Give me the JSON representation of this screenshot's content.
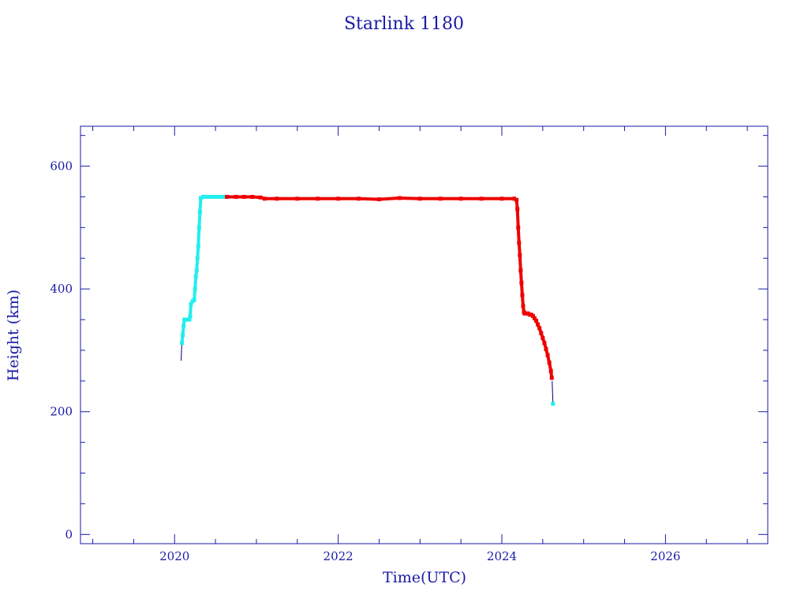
{
  "chart_data": {
    "type": "scatter",
    "title": "Starlink 1180",
    "xlabel": "Time(UTC)",
    "ylabel": "Height (km)",
    "xlim": [
      2018.85,
      2027.25
    ],
    "ylim": [
      -15,
      665
    ],
    "xticks": [
      2020,
      2022,
      2024,
      2026
    ],
    "yticks": [
      0,
      200,
      400,
      600
    ],
    "xminor_step": 0.5,
    "yminor_step": 50,
    "grid": false,
    "series": [
      {
        "color": "#000080",
        "style": "line",
        "points": [
          [
            2020.08,
            283
          ],
          [
            2020.085,
            300
          ],
          [
            2020.09,
            312
          ],
          [
            2024.615,
            250
          ],
          [
            2024.62,
            230
          ],
          [
            2024.625,
            213
          ]
        ]
      },
      {
        "color": "#22eeee",
        "style": "markers",
        "points": [
          [
            2020.09,
            312
          ],
          [
            2020.1,
            325
          ],
          [
            2020.11,
            340
          ],
          [
            2020.12,
            350
          ],
          [
            2020.14,
            350
          ],
          [
            2020.16,
            350
          ],
          [
            2020.18,
            350
          ],
          [
            2020.19,
            355
          ],
          [
            2020.2,
            375
          ],
          [
            2020.22,
            380
          ],
          [
            2020.24,
            382
          ],
          [
            2020.25,
            400
          ],
          [
            2020.26,
            420
          ],
          [
            2020.27,
            430
          ],
          [
            2020.28,
            450
          ],
          [
            2020.29,
            470
          ],
          [
            2020.3,
            500
          ],
          [
            2020.31,
            525
          ],
          [
            2020.32,
            548
          ],
          [
            2020.35,
            550
          ],
          [
            2020.4,
            550
          ],
          [
            2020.45,
            550
          ],
          [
            2020.5,
            550
          ],
          [
            2020.55,
            550
          ],
          [
            2020.6,
            550
          ],
          [
            2020.64,
            550
          ],
          [
            2024.625,
            213
          ]
        ]
      },
      {
        "color": "#ee0000",
        "style": "markers",
        "points": [
          [
            2020.64,
            550
          ],
          [
            2020.75,
            550
          ],
          [
            2020.85,
            550
          ],
          [
            2020.95,
            550
          ],
          [
            2021.05,
            549
          ],
          [
            2021.1,
            547
          ],
          [
            2021.25,
            547
          ],
          [
            2021.5,
            547
          ],
          [
            2021.75,
            547
          ],
          [
            2022.0,
            547
          ],
          [
            2022.25,
            547
          ],
          [
            2022.5,
            546
          ],
          [
            2022.75,
            548
          ],
          [
            2023.0,
            547
          ],
          [
            2023.25,
            547
          ],
          [
            2023.5,
            547
          ],
          [
            2023.75,
            547
          ],
          [
            2024.0,
            547
          ],
          [
            2024.15,
            547
          ],
          [
            2024.18,
            545
          ],
          [
            2024.19,
            530
          ],
          [
            2024.2,
            500
          ],
          [
            2024.21,
            475
          ],
          [
            2024.22,
            455
          ],
          [
            2024.23,
            430
          ],
          [
            2024.24,
            410
          ],
          [
            2024.25,
            390
          ],
          [
            2024.26,
            372
          ],
          [
            2024.27,
            362
          ],
          [
            2024.28,
            360
          ],
          [
            2024.3,
            360
          ],
          [
            2024.32,
            360
          ],
          [
            2024.34,
            358
          ],
          [
            2024.36,
            358
          ],
          [
            2024.38,
            356
          ],
          [
            2024.4,
            352
          ],
          [
            2024.42,
            348
          ],
          [
            2024.44,
            342
          ],
          [
            2024.46,
            336
          ],
          [
            2024.48,
            328
          ],
          [
            2024.5,
            320
          ],
          [
            2024.52,
            312
          ],
          [
            2024.54,
            302
          ],
          [
            2024.56,
            292
          ],
          [
            2024.58,
            280
          ],
          [
            2024.6,
            266
          ],
          [
            2024.61,
            255
          ]
        ]
      }
    ]
  }
}
